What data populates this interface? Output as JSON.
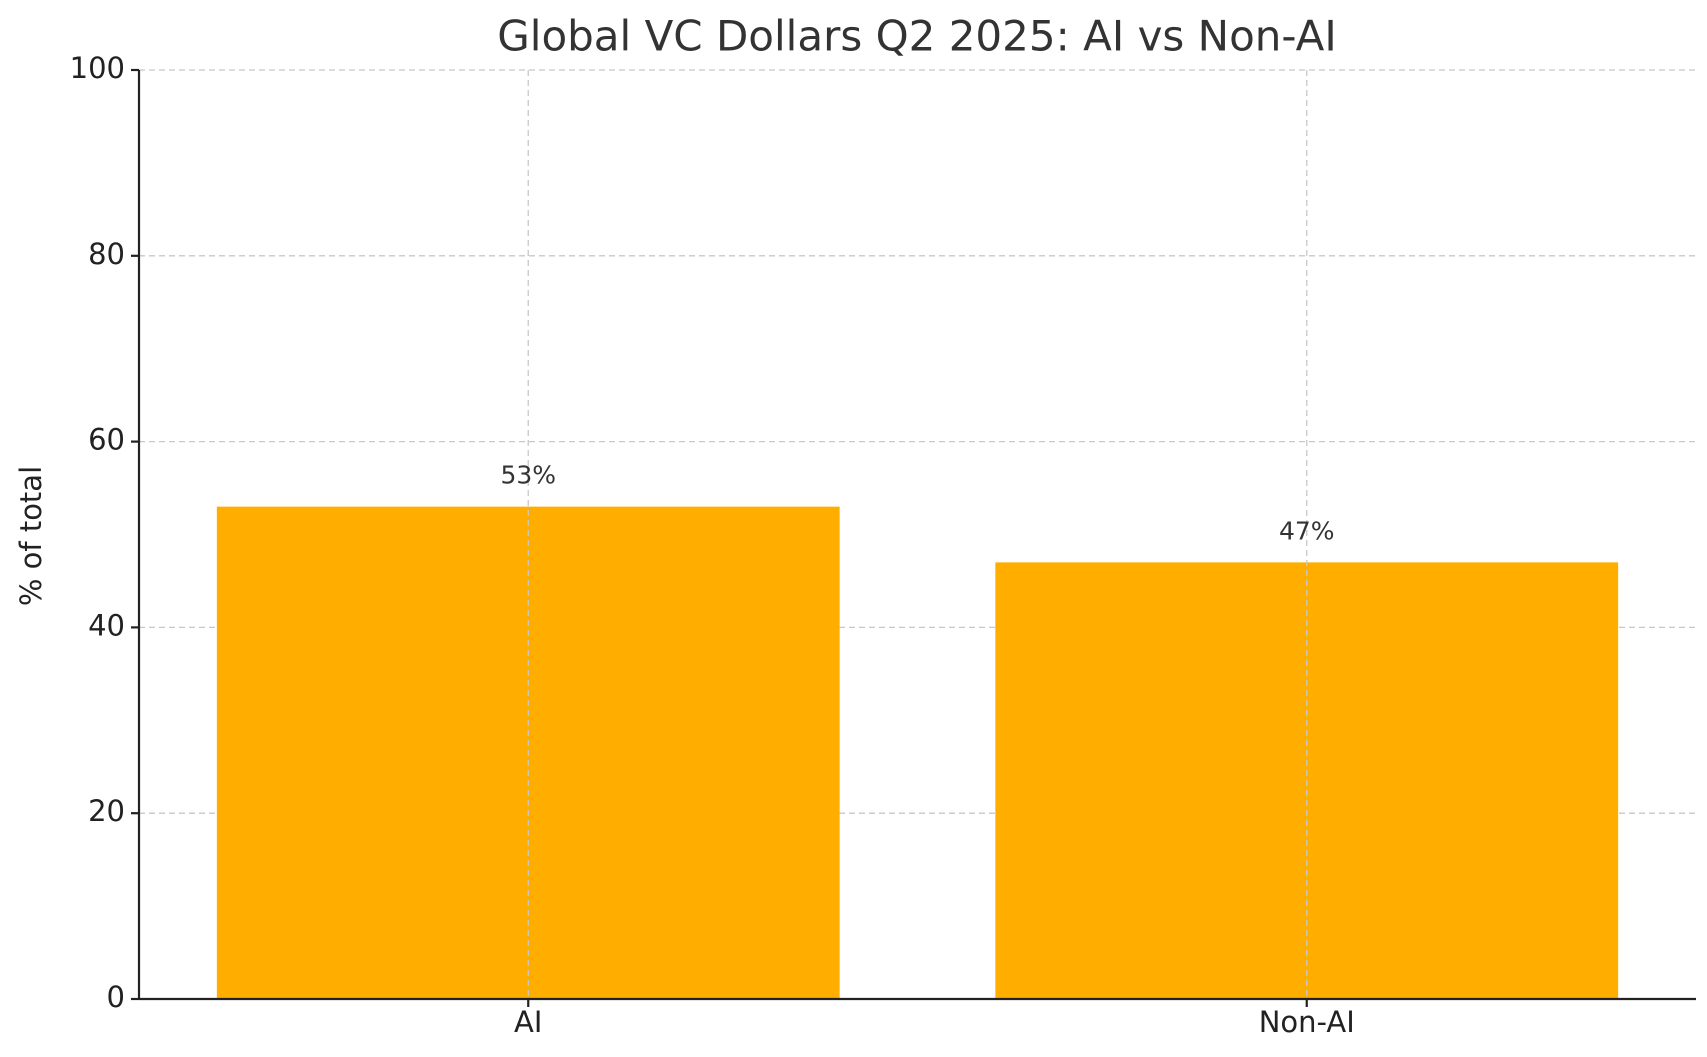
{
  "chart_data": {
    "type": "bar",
    "title": "Global VC Dollars Q2 2025: AI vs Non-AI",
    "y_label": "% of total",
    "categories": [
      "AI",
      "Non-AI"
    ],
    "values": [
      53,
      47
    ],
    "value_labels": [
      "53%",
      "47%"
    ],
    "color": "#ffae00",
    "ylim": [
      0,
      100
    ],
    "yticks": [
      0,
      20,
      40,
      60,
      80,
      100
    ],
    "grid": true
  }
}
